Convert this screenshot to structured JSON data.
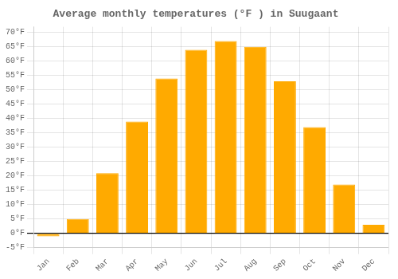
{
  "chart_data": {
    "type": "bar",
    "title": "Average monthly temperatures (°F ) in Suugaant",
    "categories": [
      "Jan",
      "Feb",
      "Mar",
      "Apr",
      "May",
      "Jun",
      "Jul",
      "Aug",
      "Sep",
      "Oct",
      "Nov",
      "Dec"
    ],
    "values": [
      -1,
      5,
      21,
      39,
      54,
      64,
      67,
      65,
      53,
      37,
      17,
      3
    ],
    "color": "#FFAA00",
    "ylim": [
      -5,
      72
    ],
    "yticks": [
      {
        "value": -5,
        "label": "-5°F"
      },
      {
        "value": 0,
        "label": "0°F"
      },
      {
        "value": 5,
        "label": "5°F"
      },
      {
        "value": 10,
        "label": "10°F"
      },
      {
        "value": 15,
        "label": "15°F"
      },
      {
        "value": 20,
        "label": "20°F"
      },
      {
        "value": 25,
        "label": "25°F"
      },
      {
        "value": 30,
        "label": "30°F"
      },
      {
        "value": 35,
        "label": "35°F"
      },
      {
        "value": 40,
        "label": "40°F"
      },
      {
        "value": 45,
        "label": "45°F"
      },
      {
        "value": 50,
        "label": "50°F"
      },
      {
        "value": 55,
        "label": "55°F"
      },
      {
        "value": 60,
        "label": "60°F"
      },
      {
        "value": 65,
        "label": "65°F"
      },
      {
        "value": 70,
        "label": "70°F"
      }
    ],
    "grid": true
  }
}
